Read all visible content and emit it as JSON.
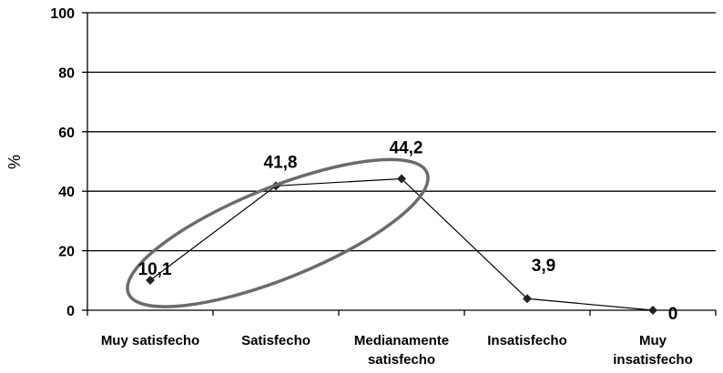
{
  "chart_data": {
    "type": "line",
    "categories": [
      "Muy satisfecho",
      "Satisfecho",
      "Medianamente satisfecho",
      "Insatisfecho",
      "Muy insatisfecho"
    ],
    "category_lines": [
      [
        "Muy satisfecho"
      ],
      [
        "Satisfecho"
      ],
      [
        "Medianamente",
        "satisfecho"
      ],
      [
        "Insatisfecho"
      ],
      [
        "Muy",
        "insatisfecho"
      ]
    ],
    "series": [
      {
        "values": [
          10.1,
          41.8,
          44.2,
          3.9,
          0
        ],
        "labels": [
          "10,1",
          "41,8",
          "44,2",
          "3,9",
          "0"
        ]
      }
    ],
    "ylabel": "%",
    "xlabel": "",
    "ylim": [
      0,
      100
    ],
    "yticks": [
      0,
      20,
      40,
      60,
      80,
      100
    ],
    "grid": true,
    "line_color": "#000000",
    "marker": "diamond",
    "annotation": {
      "shape": "ellipse",
      "color": "#6b6b6b",
      "encloses": [
        "Muy satisfecho",
        "Satisfecho",
        "Medianamente satisfecho"
      ]
    }
  }
}
